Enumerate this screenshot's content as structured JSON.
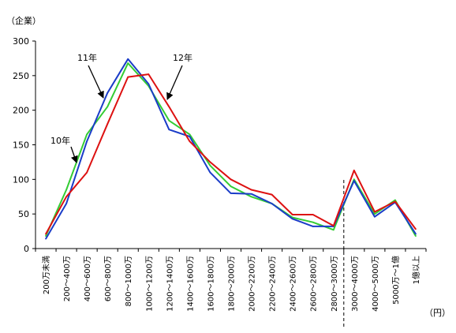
{
  "chart_data": {
    "type": "line",
    "y_unit_label": "（企業）",
    "x_unit_label": "（円）",
    "ylim": [
      0,
      300
    ],
    "yticks": [
      0,
      50,
      100,
      150,
      200,
      250,
      300
    ],
    "grid": false,
    "categories": [
      "200万未満",
      "200～400万",
      "400～600万",
      "600～800万",
      "800～1000万",
      "1000～1200万",
      "1200～1400万",
      "1400～1600万",
      "1600～1800万",
      "1800～2000万",
      "2000～2200万",
      "2200～2400万",
      "2400～2600万",
      "2600～2800万",
      "2800～3000万",
      "3000～4000万",
      "4000～5000万",
      "5000万～1億",
      "1億以上"
    ],
    "series": [
      {
        "name": "10年",
        "color": "#33cc33",
        "values": [
          18,
          85,
          165,
          205,
          268,
          235,
          185,
          165,
          120,
          90,
          75,
          65,
          45,
          38,
          27,
          100,
          50,
          70,
          18
        ]
      },
      {
        "name": "11年",
        "color": "#1a3cc8",
        "values": [
          14,
          65,
          155,
          225,
          274,
          238,
          172,
          162,
          110,
          80,
          79,
          65,
          43,
          32,
          32,
          98,
          46,
          67,
          21
        ]
      },
      {
        "name": "12年",
        "color": "#dd1111",
        "values": [
          21,
          75,
          110,
          180,
          248,
          252,
          205,
          155,
          125,
          100,
          85,
          78,
          49,
          49,
          33,
          113,
          53,
          68,
          28
        ]
      }
    ],
    "annotations": [
      {
        "series_index": 0,
        "text": "10年"
      },
      {
        "series_index": 1,
        "text": "11年"
      },
      {
        "series_index": 2,
        "text": "12年"
      }
    ],
    "separator_after_category": "2800～3000万"
  }
}
